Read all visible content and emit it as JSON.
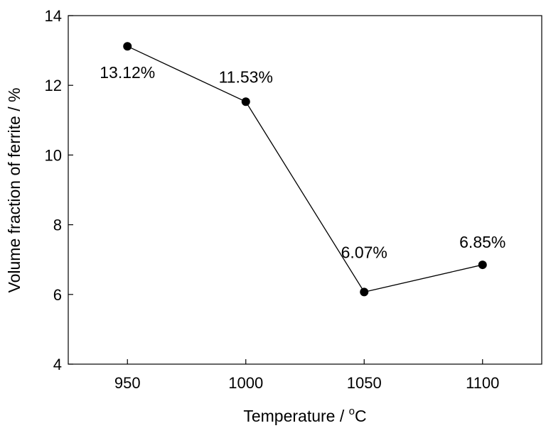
{
  "chart_data": {
    "type": "line",
    "title": "",
    "xlabel_text": "Temperature / ",
    "xlabel_sup": "o",
    "xlabel_unit": "C",
    "ylabel": "Volume fraction of ferrite / %",
    "x": [
      950,
      1000,
      1050,
      1100
    ],
    "xticks": [
      "950",
      "1000",
      "1050",
      "1100"
    ],
    "xlim": [
      925,
      1125
    ],
    "ylim": [
      4,
      14
    ],
    "yticks": [
      "4",
      "6",
      "8",
      "10",
      "12",
      "14"
    ],
    "series": [
      {
        "name": "Volume fraction of ferrite",
        "values": [
          13.12,
          11.53,
          6.07,
          6.85
        ],
        "labels": [
          "13.12%",
          "11.53%",
          "6.07%",
          "6.85%"
        ]
      }
    ],
    "grid": false,
    "legend": "none"
  }
}
